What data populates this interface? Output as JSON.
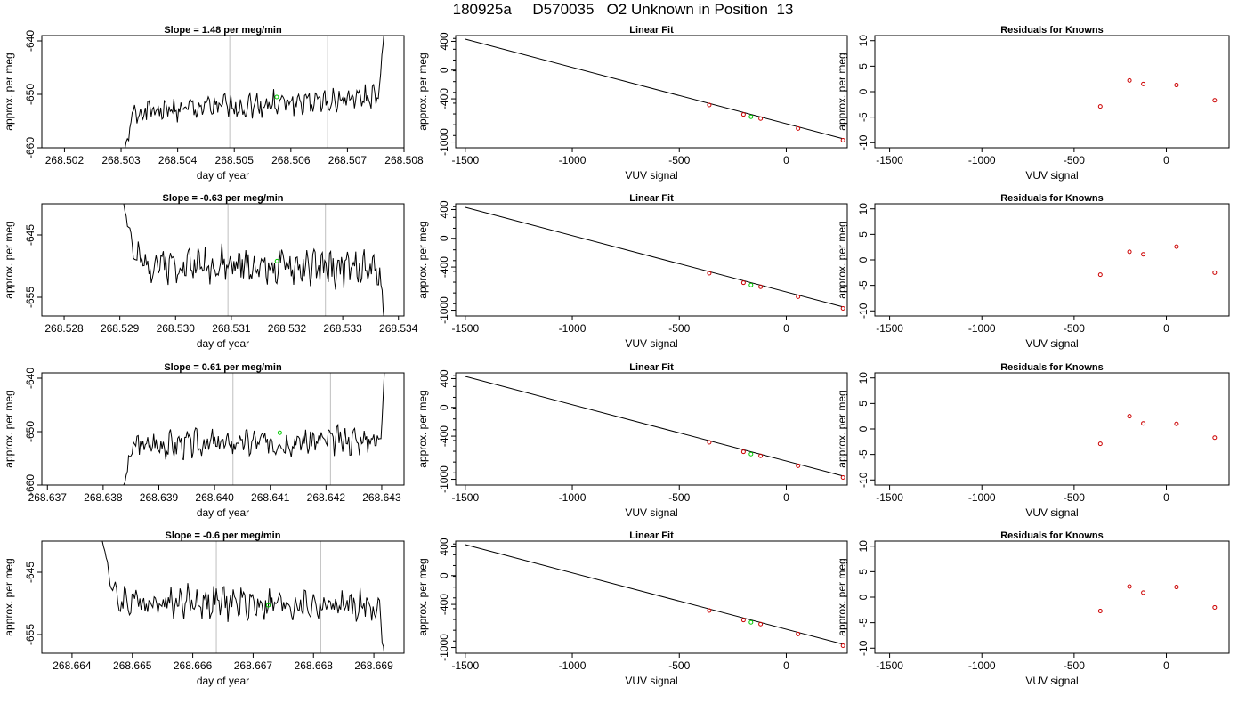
{
  "page_title": "180925a     D570035   O2 Unknown in Position  13",
  "colors": {
    "trace": "#000000",
    "unknown_marker": "#00cc00",
    "known_marker": "#cc0000",
    "vertical_line": "#bfbfbf",
    "fit_line": "#000000"
  },
  "chart_data": [
    {
      "type": "line",
      "title": "Slope =  1.48  per meg/min",
      "xlabel": "day of year",
      "ylabel": "approx. per meg",
      "xlim": [
        268.5016,
        268.508
      ],
      "ylim": [
        -660,
        -639
      ],
      "xticks": [
        "268.502",
        "268.503",
        "268.504",
        "268.505",
        "268.506",
        "268.507",
        "268.508"
      ],
      "xtick_values": [
        268.502,
        268.503,
        268.504,
        268.505,
        268.506,
        268.507,
        268.508
      ],
      "yticks": [
        "-640",
        "-650",
        "-660"
      ],
      "ytick_values": [
        -640,
        -650,
        -660
      ],
      "vlines": [
        268.50492,
        268.50665
      ],
      "trace": {
        "x_start": 268.50305,
        "x_end": 268.50765,
        "points": 220,
        "base": -652,
        "trend": 1.48,
        "amp": 1.8,
        "seed": 1,
        "start_value": -661,
        "end_value": -638,
        "ramp_start": 0.04,
        "ramp_end": 0.02
      },
      "marker": {
        "x": 268.50575,
        "y": -650.5
      }
    },
    {
      "type": "scatter",
      "title": "Linear Fit",
      "xlabel": "VUV signal",
      "ylabel": "approx. per meg",
      "xlim": [
        -1545,
        285
      ],
      "ylim": [
        -1080,
        480
      ],
      "xticks": [
        "-1500",
        "-1000",
        "-500",
        "0"
      ],
      "xtick_values": [
        -1500,
        -1000,
        -500,
        0
      ],
      "yticks": [
        "400",
        "0",
        "-400",
        "-1000"
      ],
      "ytick_values": [
        400,
        0,
        -400,
        -1000
      ],
      "fit_line": [
        [
          -1500,
          430
        ],
        [
          260,
          -950
        ]
      ],
      "known_points": [
        [
          -360,
          -485
        ],
        [
          -200,
          -618
        ],
        [
          -120,
          -675
        ],
        [
          55,
          -812
        ],
        [
          265,
          -975
        ]
      ],
      "unknown_point": [
        -165,
        -650
      ]
    },
    {
      "type": "scatter",
      "title": "Residuals for Knowns",
      "xlabel": "VUV signal",
      "ylabel": "approx. per meg",
      "xlim": [
        -1580,
        340
      ],
      "ylim": [
        -11,
        11
      ],
      "xticks": [
        "-1500",
        "-1000",
        "-500",
        "0"
      ],
      "xtick_values": [
        -1500,
        -1000,
        -500,
        0
      ],
      "yticks": [
        "10",
        "5",
        "0",
        "-5",
        "-10"
      ],
      "ytick_values": [
        10,
        5,
        0,
        -5,
        -10
      ],
      "points": [
        [
          -358,
          -2.9
        ],
        [
          -200,
          2.2
        ],
        [
          -125,
          1.5
        ],
        [
          55,
          1.3
        ],
        [
          262,
          -1.7
        ]
      ]
    },
    {
      "type": "line",
      "title": "Slope =  -0.63  per meg/min",
      "xlabel": "day of year",
      "ylabel": "approx. per meg",
      "xlim": [
        268.5276,
        268.5341
      ],
      "ylim": [
        -658,
        -640
      ],
      "xticks": [
        "268.528",
        "268.529",
        "268.530",
        "268.531",
        "268.532",
        "268.533",
        "268.534"
      ],
      "xtick_values": [
        268.528,
        268.529,
        268.53,
        268.531,
        268.532,
        268.533,
        268.534
      ],
      "yticks": [
        "-645",
        "-655"
      ],
      "ytick_values": [
        -645,
        -655
      ],
      "vlines": [
        268.53094,
        268.53269
      ],
      "trace": {
        "x_start": 268.52905,
        "x_end": 268.53375,
        "points": 220,
        "base": -650,
        "trend": -0.63,
        "amp": 2.2,
        "seed": 2,
        "start_value": -639,
        "end_value": -659,
        "ramp_start": 0.05,
        "ramp_end": 0.02
      },
      "marker": {
        "x": 268.53182,
        "y": -649.2
      }
    },
    {
      "type": "scatter",
      "title": "Linear Fit",
      "xlabel": "VUV signal",
      "ylabel": "approx. per meg",
      "xlim": [
        -1545,
        285
      ],
      "ylim": [
        -1080,
        480
      ],
      "xticks": [
        "-1500",
        "-1000",
        "-500",
        "0"
      ],
      "xtick_values": [
        -1500,
        -1000,
        -500,
        0
      ],
      "yticks": [
        "400",
        "0",
        "-400",
        "-1000"
      ],
      "ytick_values": [
        400,
        0,
        -400,
        -1000
      ],
      "fit_line": [
        [
          -1500,
          430
        ],
        [
          260,
          -950
        ]
      ],
      "known_points": [
        [
          -360,
          -485
        ],
        [
          -200,
          -618
        ],
        [
          -120,
          -675
        ],
        [
          55,
          -812
        ],
        [
          265,
          -975
        ]
      ],
      "unknown_point": [
        -165,
        -650
      ]
    },
    {
      "type": "scatter",
      "title": "Residuals for Knowns",
      "xlabel": "VUV signal",
      "ylabel": "approx. per meg",
      "xlim": [
        -1580,
        340
      ],
      "ylim": [
        -11,
        11
      ],
      "xticks": [
        "-1500",
        "-1000",
        "-500",
        "0"
      ],
      "xtick_values": [
        -1500,
        -1000,
        -500,
        0
      ],
      "yticks": [
        "10",
        "5",
        "0",
        "-5",
        "-10"
      ],
      "ytick_values": [
        10,
        5,
        0,
        -5,
        -10
      ],
      "points": [
        [
          -358,
          -2.9
        ],
        [
          -200,
          1.6
        ],
        [
          -125,
          1.1
        ],
        [
          55,
          2.6
        ],
        [
          262,
          -2.5
        ]
      ]
    },
    {
      "type": "line",
      "title": "Slope =  0.61  per meg/min",
      "xlabel": "day of year",
      "ylabel": "approx. per meg",
      "xlim": [
        268.6369,
        268.6434
      ],
      "ylim": [
        -660,
        -639
      ],
      "xticks": [
        "268.637",
        "268.638",
        "268.639",
        "268.640",
        "268.641",
        "268.642",
        "268.643"
      ],
      "xtick_values": [
        268.637,
        268.638,
        268.639,
        268.64,
        268.641,
        268.642,
        268.643
      ],
      "yticks": [
        "-640",
        "-650",
        "-660"
      ],
      "ytick_values": [
        -640,
        -650,
        -660
      ],
      "vlines": [
        268.64033,
        268.64208
      ],
      "trace": {
        "x_start": 268.63835,
        "x_end": 268.64305,
        "points": 220,
        "base": -652,
        "trend": 0.61,
        "amp": 2.0,
        "seed": 3,
        "start_value": -661,
        "end_value": -638,
        "ramp_start": 0.04,
        "ramp_end": 0.015
      },
      "marker": {
        "x": 268.64117,
        "y": -650.2
      }
    },
    {
      "type": "scatter",
      "title": "Linear Fit",
      "xlabel": "VUV signal",
      "ylabel": "approx. per meg",
      "xlim": [
        -1545,
        285
      ],
      "ylim": [
        -1080,
        480
      ],
      "xticks": [
        "-1500",
        "-1000",
        "-500",
        "0"
      ],
      "xtick_values": [
        -1500,
        -1000,
        -500,
        0
      ],
      "yticks": [
        "400",
        "0",
        "-400",
        "-1000"
      ],
      "ytick_values": [
        400,
        0,
        -400,
        -1000
      ],
      "fit_line": [
        [
          -1500,
          430
        ],
        [
          260,
          -950
        ]
      ],
      "known_points": [
        [
          -360,
          -485
        ],
        [
          -200,
          -618
        ],
        [
          -120,
          -675
        ],
        [
          55,
          -812
        ],
        [
          265,
          -975
        ]
      ],
      "unknown_point": [
        -165,
        -650
      ]
    },
    {
      "type": "scatter",
      "title": "Residuals for Knowns",
      "xlabel": "VUV signal",
      "ylabel": "approx. per meg",
      "xlim": [
        -1580,
        340
      ],
      "ylim": [
        -11,
        11
      ],
      "xticks": [
        "-1500",
        "-1000",
        "-500",
        "0"
      ],
      "xtick_values": [
        -1500,
        -1000,
        -500,
        0
      ],
      "yticks": [
        "10",
        "5",
        "0",
        "-5",
        "-10"
      ],
      "ytick_values": [
        10,
        5,
        0,
        -5,
        -10
      ],
      "points": [
        [
          -358,
          -2.9
        ],
        [
          -200,
          2.5
        ],
        [
          -125,
          1.1
        ],
        [
          55,
          1.0
        ],
        [
          262,
          -1.7
        ]
      ]
    },
    {
      "type": "line",
      "title": "Slope =  -0.6  per meg/min",
      "xlabel": "day of year",
      "ylabel": "approx. per meg",
      "xlim": [
        268.6635,
        268.6695
      ],
      "ylim": [
        -658,
        -640
      ],
      "xticks": [
        "268.664",
        "268.665",
        "268.666",
        "268.667",
        "268.668",
        "268.669"
      ],
      "xtick_values": [
        268.664,
        268.665,
        268.666,
        268.667,
        268.668,
        268.669
      ],
      "yticks": [
        "-645",
        "-655"
      ],
      "ytick_values": [
        -645,
        -655
      ],
      "vlines": [
        268.66639,
        268.66812
      ],
      "trace": {
        "x_start": 268.66448,
        "x_end": 268.66918,
        "points": 220,
        "base": -650,
        "trend": -0.6,
        "amp": 2.0,
        "seed": 4,
        "start_value": -639,
        "end_value": -659,
        "ramp_start": 0.05,
        "ramp_end": 0.02
      },
      "marker": {
        "x": 268.66725,
        "y": -650.3
      }
    },
    {
      "type": "scatter",
      "title": "Linear Fit",
      "xlabel": "VUV signal",
      "ylabel": "approx. per meg",
      "xlim": [
        -1545,
        285
      ],
      "ylim": [
        -1080,
        480
      ],
      "xticks": [
        "-1500",
        "-1000",
        "-500",
        "0"
      ],
      "xtick_values": [
        -1500,
        -1000,
        -500,
        0
      ],
      "yticks": [
        "400",
        "0",
        "-400",
        "-1000"
      ],
      "ytick_values": [
        400,
        0,
        -400,
        -1000
      ],
      "fit_line": [
        [
          -1500,
          430
        ],
        [
          260,
          -950
        ]
      ],
      "known_points": [
        [
          -360,
          -485
        ],
        [
          -200,
          -618
        ],
        [
          -120,
          -675
        ],
        [
          55,
          -812
        ],
        [
          265,
          -975
        ]
      ],
      "unknown_point": [
        -165,
        -650
      ]
    },
    {
      "type": "scatter",
      "title": "Residuals for Knowns",
      "xlabel": "VUV signal",
      "ylabel": "approx. per meg",
      "xlim": [
        -1580,
        340
      ],
      "ylim": [
        -11,
        11
      ],
      "xticks": [
        "-1500",
        "-1000",
        "-500",
        "0"
      ],
      "xtick_values": [
        -1500,
        -1000,
        -500,
        0
      ],
      "yticks": [
        "10",
        "5",
        "0",
        "-5",
        "-10"
      ],
      "ytick_values": [
        10,
        5,
        0,
        -5,
        -10
      ],
      "points": [
        [
          -358,
          -2.7
        ],
        [
          -200,
          2.1
        ],
        [
          -125,
          0.9
        ],
        [
          55,
          2.0
        ],
        [
          262,
          -2.0
        ]
      ]
    }
  ]
}
